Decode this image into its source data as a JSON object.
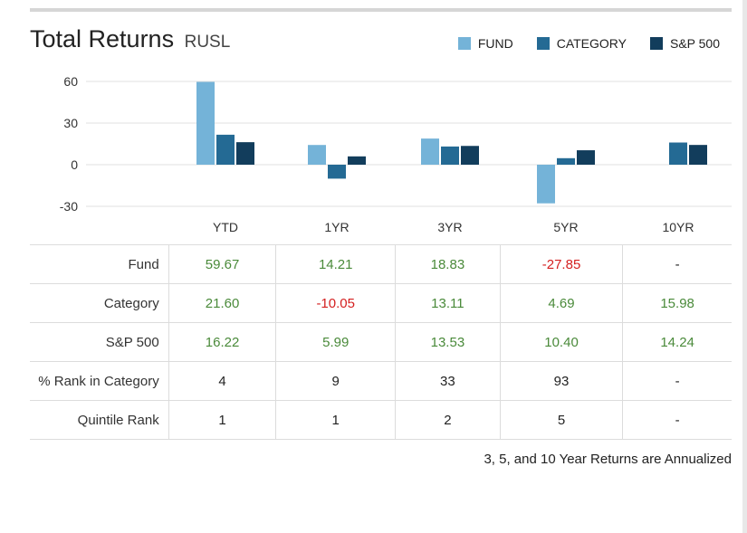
{
  "header": {
    "title": "Total Returns",
    "ticker": "RUSL"
  },
  "colors": {
    "fund": "#74b3d8",
    "category": "#246a94",
    "sp500": "#123d5c",
    "positive": "#4a8a3a",
    "negative": "#d42020",
    "grid": "#e0e0e0"
  },
  "chart_data": {
    "type": "bar",
    "categories": [
      "YTD",
      "1YR",
      "3YR",
      "5YR",
      "10YR"
    ],
    "series": [
      {
        "name": "FUND",
        "values": [
          59.67,
          14.21,
          18.83,
          -27.85,
          null
        ]
      },
      {
        "name": "CATEGORY",
        "values": [
          21.6,
          -10.05,
          13.11,
          4.69,
          15.98
        ]
      },
      {
        "name": "S&P 500",
        "values": [
          16.22,
          5.99,
          13.53,
          10.4,
          14.24
        ]
      }
    ],
    "yticks": [
      60,
      30,
      0,
      -30
    ],
    "ylim": [
      -30,
      60
    ],
    "grid": true,
    "legend_position": "top-right"
  },
  "table": {
    "rows": [
      {
        "label": "Fund",
        "cells": [
          "59.67",
          "14.21",
          "18.83",
          "-27.85",
          "-"
        ],
        "styles": [
          "pos",
          "pos",
          "pos",
          "neg",
          "neutral"
        ]
      },
      {
        "label": "Category",
        "cells": [
          "21.60",
          "-10.05",
          "13.11",
          "4.69",
          "15.98"
        ],
        "styles": [
          "pos",
          "neg",
          "pos",
          "pos",
          "pos"
        ]
      },
      {
        "label": "S&P 500",
        "cells": [
          "16.22",
          "5.99",
          "13.53",
          "10.40",
          "14.24"
        ],
        "styles": [
          "pos",
          "pos",
          "pos",
          "pos",
          "pos"
        ]
      },
      {
        "label": "% Rank in Category",
        "cells": [
          "4",
          "9",
          "33",
          "93",
          "-"
        ],
        "styles": [
          "neutral",
          "neutral",
          "neutral",
          "neutral",
          "neutral"
        ]
      },
      {
        "label": "Quintile Rank",
        "cells": [
          "1",
          "1",
          "2",
          "5",
          "-"
        ],
        "styles": [
          "neutral",
          "neutral",
          "neutral",
          "neutral",
          "neutral"
        ]
      }
    ]
  },
  "footnote": "3, 5, and 10 Year Returns are Annualized"
}
